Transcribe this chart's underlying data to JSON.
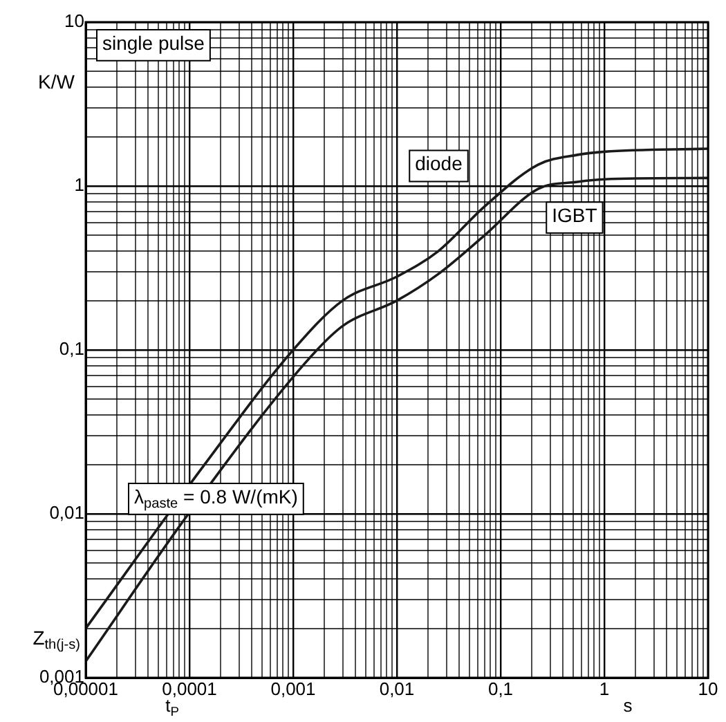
{
  "chart_data": {
    "type": "line",
    "xlabel": "t$_{P}$",
    "ylabel": "Z$_{th(j-s)}$",
    "log": "xy",
    "grid": true,
    "legend": false,
    "marker": "none",
    "line_style": "solid",
    "xlim": [
      1e-05,
      10
    ],
    "ylim": [
      0.001,
      10
    ],
    "xticks": [
      {
        "value": 1e-05,
        "label": "0,00001"
      },
      {
        "value": 2e-05,
        "label": null
      },
      {
        "value": 3e-05,
        "label": null
      },
      {
        "value": 4e-05,
        "label": null
      },
      {
        "value": 5e-05,
        "label": null
      },
      {
        "value": 6e-05,
        "label": null
      },
      {
        "value": 7e-05,
        "label": null
      },
      {
        "value": 8e-05,
        "label": null
      },
      {
        "value": 9e-05,
        "label": null
      },
      {
        "value": 0.0001,
        "label": "0,0001"
      },
      {
        "value": 0.0002,
        "label": null
      },
      {
        "value": 0.0003,
        "label": null
      },
      {
        "value": 0.0004,
        "label": null
      },
      {
        "value": 0.0005,
        "label": null
      },
      {
        "value": 0.0006,
        "label": null
      },
      {
        "value": 0.0007,
        "label": null
      },
      {
        "value": 0.0008,
        "label": null
      },
      {
        "value": 0.0009,
        "label": null
      },
      {
        "value": 0.001,
        "label": "0,001"
      },
      {
        "value": 0.002,
        "label": null
      },
      {
        "value": 0.003,
        "label": null
      },
      {
        "value": 0.004,
        "label": null
      },
      {
        "value": 0.005,
        "label": null
      },
      {
        "value": 0.006,
        "label": null
      },
      {
        "value": 0.007,
        "label": null
      },
      {
        "value": 0.008,
        "label": null
      },
      {
        "value": 0.009,
        "label": null
      },
      {
        "value": 0.01,
        "label": "0,01"
      },
      {
        "value": 0.02,
        "label": null
      },
      {
        "value": 0.03,
        "label": null
      },
      {
        "value": 0.04,
        "label": null
      },
      {
        "value": 0.05,
        "label": null
      },
      {
        "value": 0.06,
        "label": null
      },
      {
        "value": 0.07,
        "label": null
      },
      {
        "value": 0.08,
        "label": null
      },
      {
        "value": 0.09,
        "label": null
      },
      {
        "value": 0.1,
        "label": "0,1"
      },
      {
        "value": 0.2,
        "label": null
      },
      {
        "value": 0.3,
        "label": null
      },
      {
        "value": 0.4,
        "label": null
      },
      {
        "value": 0.5,
        "label": null
      },
      {
        "value": 0.6,
        "label": null
      },
      {
        "value": 0.7,
        "label": null
      },
      {
        "value": 0.8,
        "label": null
      },
      {
        "value": 0.9,
        "label": null
      },
      {
        "value": 1,
        "label": "1"
      },
      {
        "value": 2,
        "label": null
      },
      {
        "value": 3,
        "label": null
      },
      {
        "value": 4,
        "label": null
      },
      {
        "value": 5,
        "label": null
      },
      {
        "value": 6,
        "label": null
      },
      {
        "value": 7,
        "label": null
      },
      {
        "value": 8,
        "label": null
      },
      {
        "value": 9,
        "label": null
      },
      {
        "value": 10,
        "label": "10"
      }
    ],
    "yticks": [
      {
        "value": 0.001,
        "label": "0,001"
      },
      {
        "value": 0.002,
        "label": null
      },
      {
        "value": 0.003,
        "label": null
      },
      {
        "value": 0.004,
        "label": null
      },
      {
        "value": 0.005,
        "label": null
      },
      {
        "value": 0.006,
        "label": null
      },
      {
        "value": 0.007,
        "label": null
      },
      {
        "value": 0.008,
        "label": null
      },
      {
        "value": 0.009,
        "label": null
      },
      {
        "value": 0.01,
        "label": "0,01"
      },
      {
        "value": 0.02,
        "label": null
      },
      {
        "value": 0.03,
        "label": null
      },
      {
        "value": 0.04,
        "label": null
      },
      {
        "value": 0.05,
        "label": null
      },
      {
        "value": 0.06,
        "label": null
      },
      {
        "value": 0.07,
        "label": null
      },
      {
        "value": 0.08,
        "label": null
      },
      {
        "value": 0.09,
        "label": null
      },
      {
        "value": 0.1,
        "label": "0,1"
      },
      {
        "value": 0.2,
        "label": null
      },
      {
        "value": 0.3,
        "label": null
      },
      {
        "value": 0.4,
        "label": null
      },
      {
        "value": 0.5,
        "label": null
      },
      {
        "value": 0.6,
        "label": null
      },
      {
        "value": 0.7,
        "label": null
      },
      {
        "value": 0.8,
        "label": null
      },
      {
        "value": 0.9,
        "label": null
      },
      {
        "value": 1,
        "label": "1"
      },
      {
        "value": 2,
        "label": null
      },
      {
        "value": 3,
        "label": null
      },
      {
        "value": 4,
        "label": null
      },
      {
        "value": 5,
        "label": null
      },
      {
        "value": 6,
        "label": null
      },
      {
        "value": 7,
        "label": null
      },
      {
        "value": 8,
        "label": null
      },
      {
        "value": 9,
        "label": null
      },
      {
        "value": 10,
        "label": "10"
      }
    ],
    "series": [
      {
        "name": "diode",
        "color": "#1a1a1a",
        "x": [
          1e-05,
          0.00014,
          0.001,
          0.003,
          0.01,
          0.025,
          0.07,
          0.23,
          0.55,
          1,
          10
        ],
        "values": [
          0.002,
          0.02,
          0.1,
          0.2,
          0.28,
          0.4,
          0.75,
          1.35,
          1.55,
          1.62,
          1.69
        ]
      },
      {
        "name": "IGBT",
        "color": "#1a1a1a",
        "x": [
          1e-05,
          0.0001,
          0.0013,
          0.003,
          0.01,
          0.025,
          0.07,
          0.23,
          0.55,
          1,
          10
        ],
        "values": [
          0.00126,
          0.0102,
          0.083,
          0.14,
          0.2,
          0.29,
          0.5,
          0.96,
          1.06,
          1.1,
          1.12
        ]
      }
    ],
    "annotations": [
      "single pulse",
      "λ$_{paste}$ = 0.8 W/(mK)",
      "K/W",
      "s"
    ]
  }
}
